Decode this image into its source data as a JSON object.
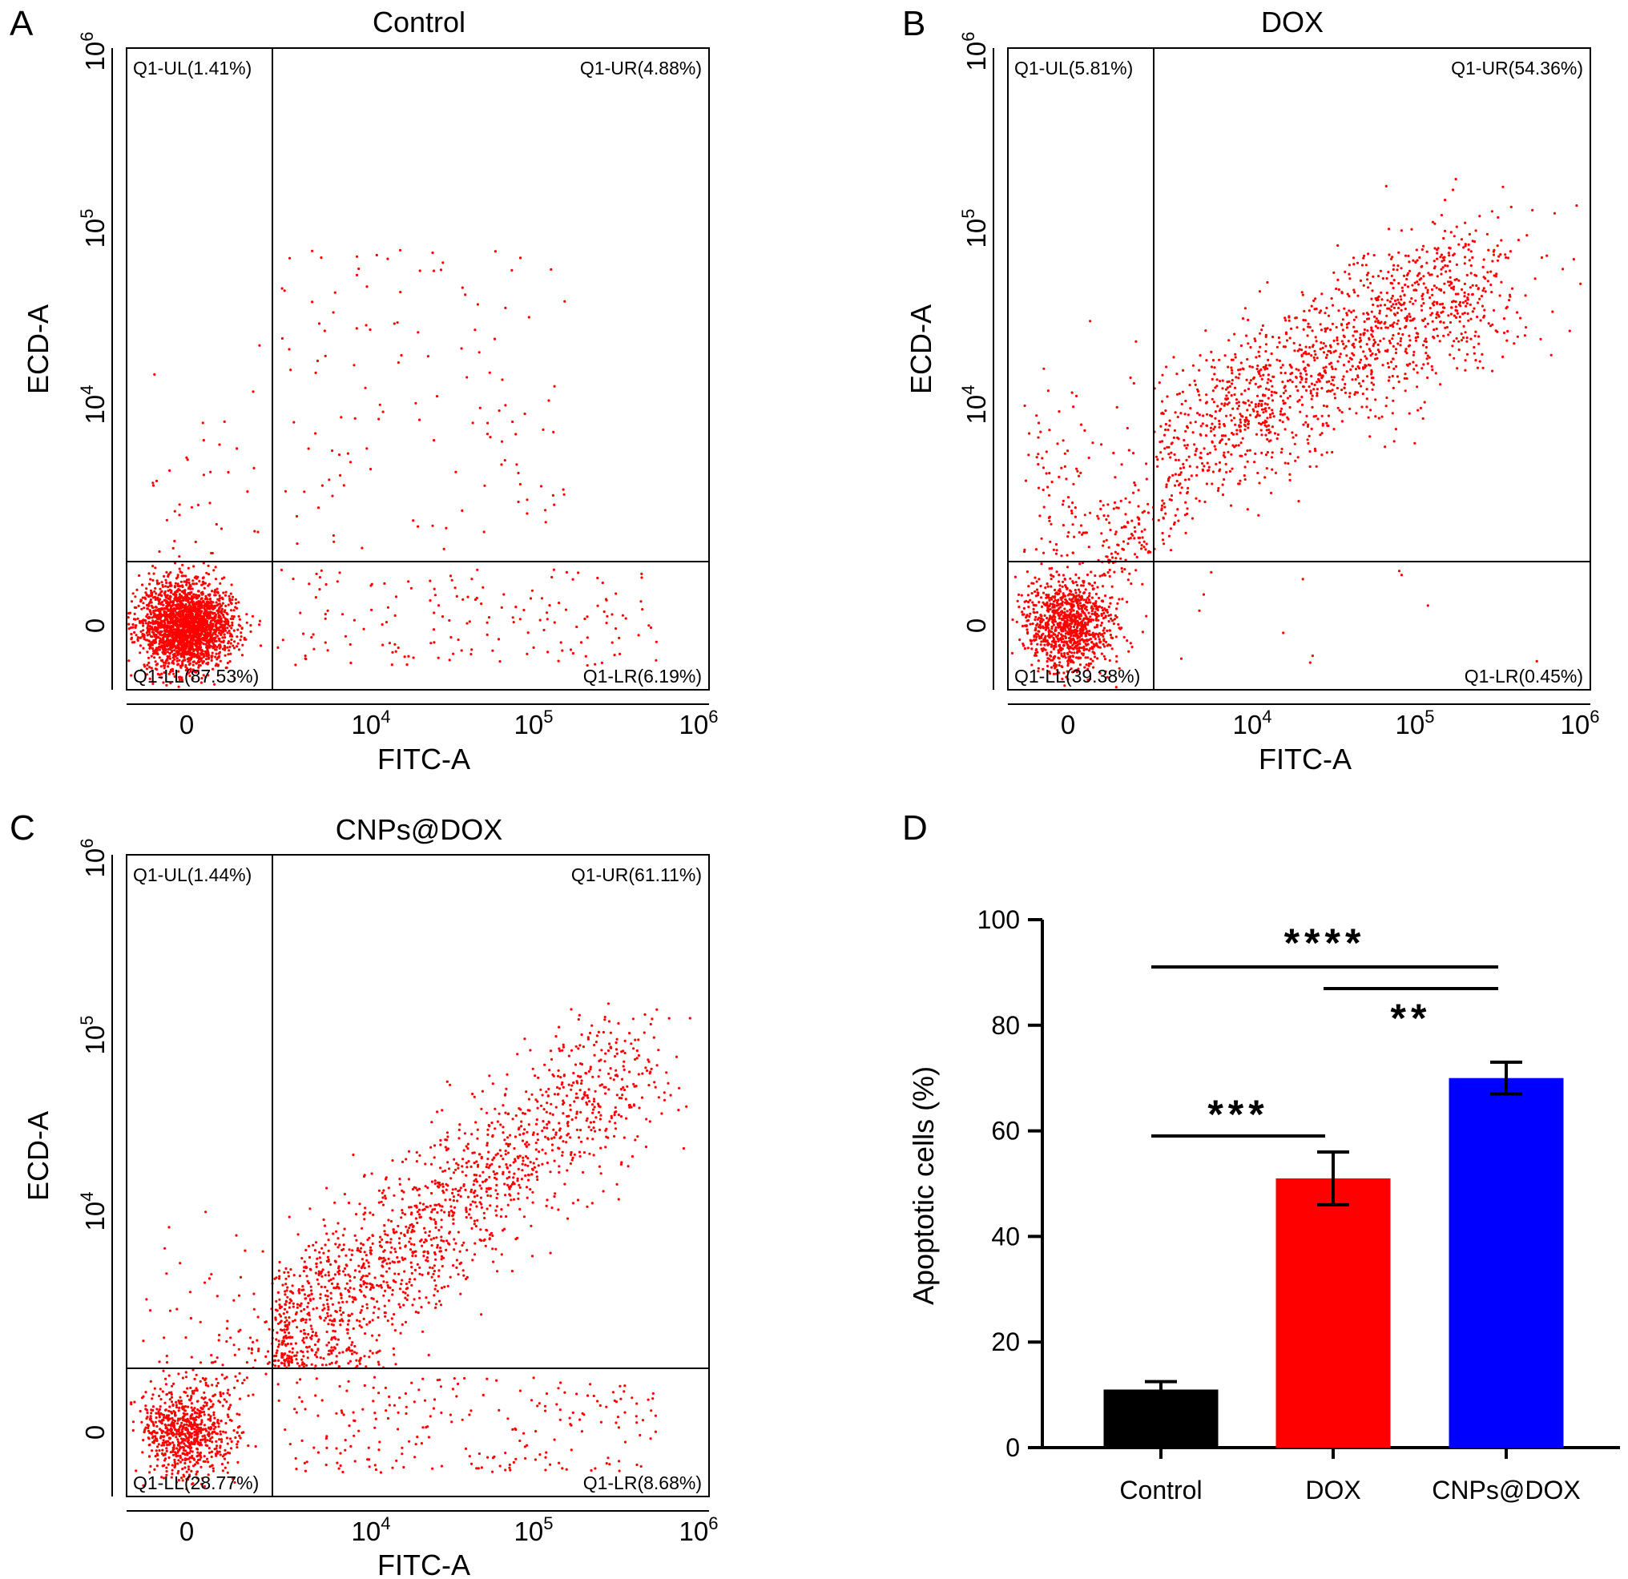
{
  "chart_data": [
    {
      "type": "scatter",
      "panel": "A",
      "title": "Control",
      "xlabel": "FITC-A",
      "ylabel": "ECD-A",
      "x_scale": "biexponential",
      "y_scale": "biexponential",
      "x_ticks": [
        {
          "base": "0",
          "exp": ""
        },
        {
          "base": "10",
          "exp": "4"
        },
        {
          "base": "10",
          "exp": "5"
        },
        {
          "base": "10",
          "exp": "6"
        }
      ],
      "y_ticks": [
        {
          "base": "0",
          "exp": ""
        },
        {
          "base": "10",
          "exp": "4"
        },
        {
          "base": "10",
          "exp": "5"
        },
        {
          "base": "10",
          "exp": "6"
        }
      ],
      "quadrants": {
        "UL": "Q1-UL(1.41%)",
        "UR": "Q1-UR(4.88%)",
        "LL": "Q1-LL(87.53%)",
        "LR": "Q1-LR(6.19%)"
      },
      "quadrant_percent": {
        "UL": 1.41,
        "UR": 4.88,
        "LL": 87.53,
        "LR": 6.19
      },
      "point_color": "#ff0000"
    },
    {
      "type": "scatter",
      "panel": "B",
      "title": "DOX",
      "xlabel": "FITC-A",
      "ylabel": "ECD-A",
      "x_scale": "biexponential",
      "y_scale": "biexponential",
      "x_ticks": [
        {
          "base": "0",
          "exp": ""
        },
        {
          "base": "10",
          "exp": "4"
        },
        {
          "base": "10",
          "exp": "5"
        },
        {
          "base": "10",
          "exp": "6"
        }
      ],
      "y_ticks": [
        {
          "base": "0",
          "exp": ""
        },
        {
          "base": "10",
          "exp": "4"
        },
        {
          "base": "10",
          "exp": "5"
        },
        {
          "base": "10",
          "exp": "6"
        }
      ],
      "quadrants": {
        "UL": "Q1-UL(5.81%)",
        "UR": "Q1-UR(54.36%)",
        "LL": "Q1-LL(39.38%)",
        "LR": "Q1-LR(0.45%)"
      },
      "quadrant_percent": {
        "UL": 5.81,
        "UR": 54.36,
        "LL": 39.38,
        "LR": 0.45
      },
      "point_color": "#ff0000"
    },
    {
      "type": "scatter",
      "panel": "C",
      "title": "CNPs@DOX",
      "xlabel": "FITC-A",
      "ylabel": "ECD-A",
      "x_scale": "biexponential",
      "y_scale": "biexponential",
      "x_ticks": [
        {
          "base": "0",
          "exp": ""
        },
        {
          "base": "10",
          "exp": "4"
        },
        {
          "base": "10",
          "exp": "5"
        },
        {
          "base": "10",
          "exp": "6"
        }
      ],
      "y_ticks": [
        {
          "base": "0",
          "exp": ""
        },
        {
          "base": "10",
          "exp": "4"
        },
        {
          "base": "10",
          "exp": "5"
        },
        {
          "base": "10",
          "exp": "6"
        }
      ],
      "quadrants": {
        "UL": "Q1-UL(1.44%)",
        "UR": "Q1-UR(61.11%)",
        "LL": "Q1-LL(28.77%)",
        "LR": "Q1-LR(8.68%)"
      },
      "quadrant_percent": {
        "UL": 1.44,
        "UR": 61.11,
        "LL": 28.77,
        "LR": 8.68
      },
      "point_color": "#ff0000"
    },
    {
      "type": "bar",
      "panel": "D",
      "title": "",
      "xlabel": "",
      "ylabel": "Apoptotic cells (%)",
      "categories": [
        "Control",
        "DOX",
        "CNPs@DOX"
      ],
      "values": [
        11,
        51,
        70
      ],
      "errors": [
        1.5,
        5,
        3
      ],
      "colors": [
        "#000000",
        "#ff0000",
        "#0000ff"
      ],
      "ylim": [
        0,
        100
      ],
      "yticks": [
        "0",
        "20",
        "40",
        "60",
        "80",
        "100"
      ],
      "significance": [
        {
          "from": 0,
          "to": 1,
          "label": "***"
        },
        {
          "from": 1,
          "to": 2,
          "label": "**"
        },
        {
          "from": 0,
          "to": 2,
          "label": "****"
        }
      ]
    }
  ]
}
